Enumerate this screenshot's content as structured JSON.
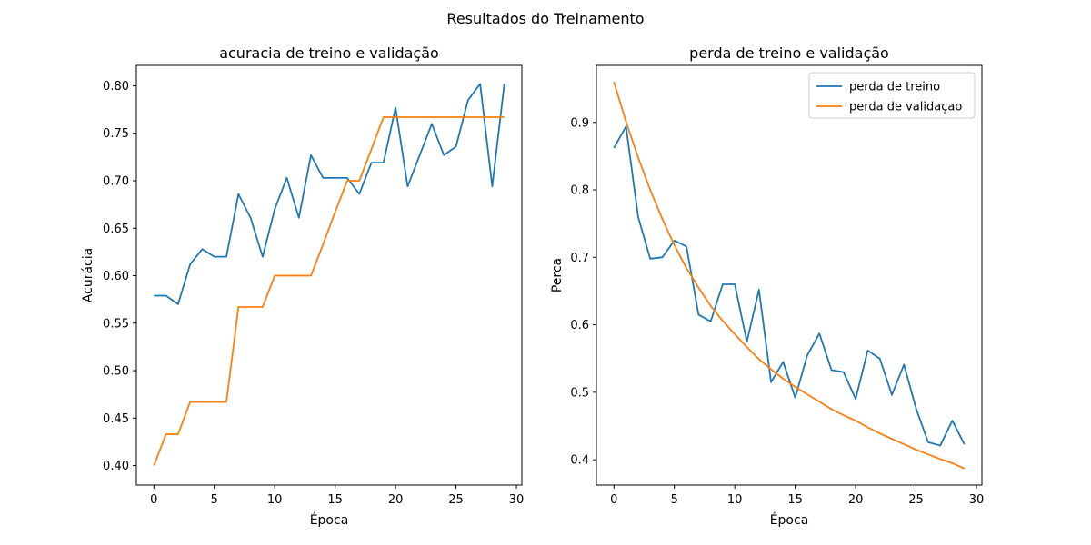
{
  "figure": {
    "title": "Resultados do Treinamento"
  },
  "colors": {
    "train": "#1f77b4",
    "val": "#ff7f0e",
    "axis": "#000000",
    "legend_border": "#cccccc"
  },
  "chart_data": [
    {
      "type": "line",
      "title": "acuracia de treino e validação",
      "xlabel": "Época",
      "ylabel": "Acurácia",
      "xlim": [
        -1.45,
        30.45
      ],
      "ylim": [
        0.3795,
        0.8215
      ],
      "xticks": [
        0,
        5,
        10,
        15,
        20,
        25,
        30
      ],
      "yticks": [
        0.4,
        0.45,
        0.5,
        0.55,
        0.6,
        0.65,
        0.7,
        0.75,
        0.8
      ],
      "ytick_labels": [
        "0.40",
        "0.45",
        "0.50",
        "0.55",
        "0.60",
        "0.65",
        "0.70",
        "0.75",
        "0.80"
      ],
      "grid": false,
      "legend": null,
      "x": [
        0,
        1,
        2,
        3,
        4,
        5,
        6,
        7,
        8,
        9,
        10,
        11,
        12,
        13,
        14,
        15,
        16,
        17,
        18,
        19,
        20,
        21,
        22,
        23,
        24,
        25,
        26,
        27,
        28,
        29
      ],
      "series": [
        {
          "key": "train",
          "values": [
            0.579,
            0.579,
            0.57,
            0.612,
            0.628,
            0.62,
            0.62,
            0.686,
            0.661,
            0.62,
            0.67,
            0.703,
            0.661,
            0.727,
            0.703,
            0.703,
            0.703,
            0.686,
            0.719,
            0.719,
            0.777,
            0.694,
            0.727,
            0.76,
            0.727,
            0.736,
            0.785,
            0.802,
            0.694,
            0.802
          ]
        },
        {
          "key": "val",
          "values": [
            0.4,
            0.433,
            0.433,
            0.467,
            0.467,
            0.467,
            0.467,
            0.567,
            0.567,
            0.567,
            0.6,
            0.6,
            0.6,
            0.6,
            0.633,
            0.667,
            0.7,
            0.7,
            0.733,
            0.767,
            0.767,
            0.767,
            0.767,
            0.767,
            0.767,
            0.767,
            0.767,
            0.767,
            0.767,
            0.767
          ]
        }
      ]
    },
    {
      "type": "line",
      "title": "perda de treino e validação",
      "xlabel": "Época",
      "ylabel": "Perca",
      "xlim": [
        -1.45,
        30.45
      ],
      "ylim": [
        0.3625,
        0.9845
      ],
      "xticks": [
        0,
        5,
        10,
        15,
        20,
        25,
        30
      ],
      "yticks": [
        0.4,
        0.5,
        0.6,
        0.7,
        0.8,
        0.9
      ],
      "ytick_labels": [
        "0.4",
        "0.5",
        "0.6",
        "0.7",
        "0.8",
        "0.9"
      ],
      "grid": false,
      "legend": "top-right",
      "x": [
        0,
        1,
        2,
        3,
        4,
        5,
        6,
        7,
        8,
        9,
        10,
        11,
        12,
        13,
        14,
        15,
        16,
        17,
        18,
        19,
        20,
        21,
        22,
        23,
        24,
        25,
        26,
        27,
        28,
        29
      ],
      "series": [
        {
          "key": "train",
          "name": "perda de treino",
          "values": [
            0.862,
            0.894,
            0.76,
            0.698,
            0.7,
            0.725,
            0.716,
            0.615,
            0.605,
            0.66,
            0.66,
            0.575,
            0.652,
            0.515,
            0.545,
            0.492,
            0.555,
            0.587,
            0.533,
            0.53,
            0.49,
            0.562,
            0.55,
            0.496,
            0.541,
            0.476,
            0.426,
            0.421,
            0.458,
            0.423
          ]
        },
        {
          "key": "val",
          "name": "perda de validaçao",
          "values": [
            0.96,
            0.901,
            0.848,
            0.8,
            0.757,
            0.718,
            0.684,
            0.655,
            0.628,
            0.606,
            0.586,
            0.567,
            0.549,
            0.534,
            0.52,
            0.508,
            0.497,
            0.486,
            0.475,
            0.466,
            0.458,
            0.448,
            0.439,
            0.431,
            0.423,
            0.415,
            0.408,
            0.401,
            0.395,
            0.387
          ]
        }
      ]
    }
  ]
}
